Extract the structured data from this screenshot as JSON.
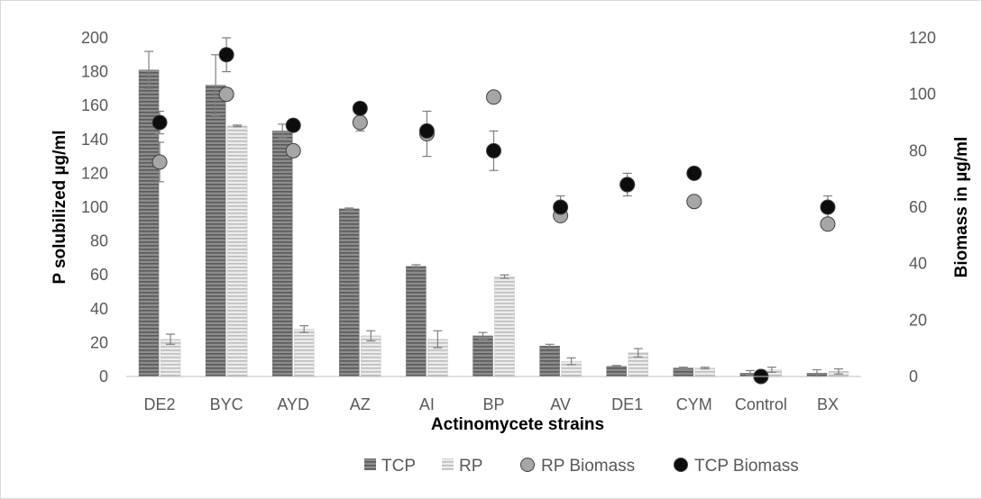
{
  "chart_data": {
    "type": "bar",
    "categories": [
      "DE2",
      "BYC",
      "AYD",
      "AZ",
      "AI",
      "BP",
      "AV",
      "DE1",
      "CYM",
      "Control",
      "BX"
    ],
    "xlabel": "Actinomycete strains",
    "ylabel": "P solubilized µg/ml",
    "y2label": "Biomass in µg/ml",
    "ylim": [
      0,
      200
    ],
    "y2lim": [
      0,
      120
    ],
    "yticks": [
      0,
      20,
      40,
      60,
      80,
      100,
      120,
      140,
      160,
      180,
      200
    ],
    "y2ticks": [
      0,
      20,
      40,
      60,
      80,
      100,
      120
    ],
    "grid": false,
    "legend_position": "bottom",
    "series": [
      {
        "name": "TCP",
        "kind": "bar",
        "axis": "left",
        "color": "#7f7f7f",
        "values": [
          181,
          172,
          145,
          99,
          65,
          24,
          18,
          6,
          5,
          2,
          2
        ],
        "errors": [
          11,
          18,
          4,
          0.5,
          1,
          2,
          1,
          0.5,
          0.5,
          1.5,
          2
        ]
      },
      {
        "name": "RP",
        "kind": "bar",
        "axis": "left",
        "color": "#d9d9d9",
        "values": [
          22,
          148,
          28,
          24,
          22,
          59,
          9,
          14,
          5,
          4,
          3
        ],
        "errors": [
          3,
          0.5,
          2,
          3,
          5,
          1,
          2,
          2.5,
          0.5,
          1.5,
          1.5
        ]
      },
      {
        "name": "RP Biomass",
        "kind": "scatter",
        "axis": "right",
        "color": "#a6a6a6",
        "values": [
          76,
          100,
          80,
          90,
          86,
          99,
          57,
          68,
          62,
          0,
          54
        ],
        "errors": [
          7,
          0,
          0,
          3,
          8,
          0,
          2,
          0,
          2,
          0,
          2
        ]
      },
      {
        "name": "TCP Biomass",
        "kind": "scatter",
        "axis": "right",
        "color": "#0d0d0d",
        "values": [
          90,
          114,
          89,
          95,
          87,
          80,
          60,
          68,
          72,
          0,
          60
        ],
        "errors": [
          4,
          6,
          0,
          0,
          0,
          7,
          4,
          4,
          1.5,
          0,
          4
        ]
      }
    ]
  }
}
